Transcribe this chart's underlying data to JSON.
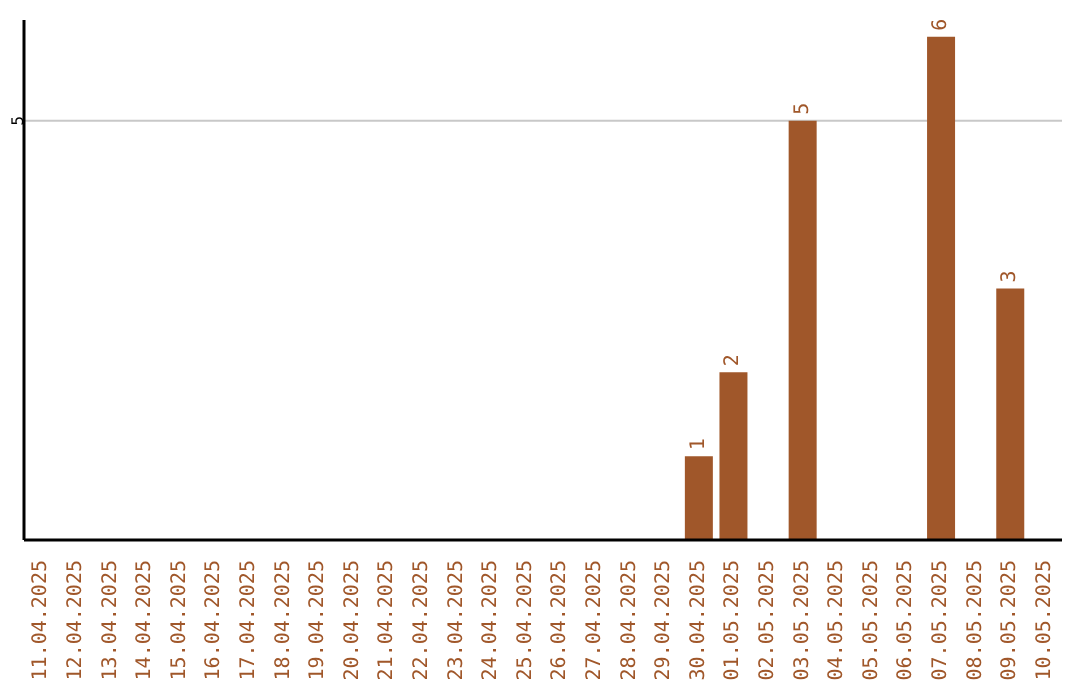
{
  "chart_data": {
    "type": "bar",
    "categories": [
      "11.04.2025",
      "12.04.2025",
      "13.04.2025",
      "14.04.2025",
      "15.04.2025",
      "16.04.2025",
      "17.04.2025",
      "18.04.2025",
      "19.04.2025",
      "20.04.2025",
      "21.04.2025",
      "22.04.2025",
      "23.04.2025",
      "24.04.2025",
      "25.04.2025",
      "26.04.2025",
      "27.04.2025",
      "28.04.2025",
      "29.04.2025",
      "30.04.2025",
      "01.05.2025",
      "02.05.2025",
      "03.05.2025",
      "04.05.2025",
      "05.05.2025",
      "06.05.2025",
      "07.05.2025",
      "08.05.2025",
      "09.05.2025",
      "10.05.2025"
    ],
    "values": [
      null,
      null,
      null,
      null,
      null,
      null,
      null,
      null,
      null,
      null,
      null,
      null,
      null,
      null,
      null,
      null,
      null,
      null,
      null,
      1,
      2,
      null,
      5,
      null,
      null,
      null,
      6,
      null,
      3,
      null
    ],
    "data_labels": true,
    "color": "#a0572a",
    "ylim": [
      0,
      6.2
    ],
    "yticks": [
      5
    ],
    "grid": "y"
  }
}
